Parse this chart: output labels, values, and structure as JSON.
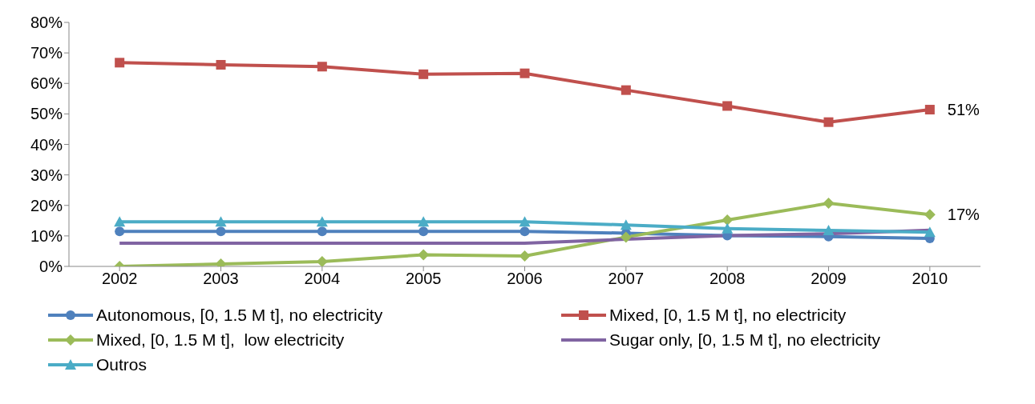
{
  "chart_data": {
    "type": "line",
    "categories": [
      "2002",
      "2003",
      "2004",
      "2005",
      "2006",
      "2007",
      "2008",
      "2009",
      "2010"
    ],
    "ylim": [
      0,
      80
    ],
    "yticks": [
      {
        "value": 0,
        "label": "0%"
      },
      {
        "value": 10,
        "label": "10%"
      },
      {
        "value": 20,
        "label": "20%"
      },
      {
        "value": 30,
        "label": "30%"
      },
      {
        "value": 40,
        "label": "40%"
      },
      {
        "value": 50,
        "label": "50%"
      },
      {
        "value": 60,
        "label": "60%"
      },
      {
        "value": 70,
        "label": "70%"
      },
      {
        "value": 80,
        "label": "80%"
      }
    ],
    "grid": false,
    "legend": "bottom",
    "series": [
      {
        "name": "Autonomous, [0, 1.5 M t], no electricity",
        "color": "#4f81bd",
        "marker": "circle",
        "values": [
          11.5,
          11.5,
          11.5,
          11.5,
          11.5,
          10.9,
          10.1,
          9.8,
          9.2
        ]
      },
      {
        "name": "Mixed, [0, 1.5 M t], no electricity",
        "color": "#c0504d",
        "marker": "square",
        "values": [
          66.8,
          66.1,
          65.5,
          63,
          63.3,
          57.8,
          52.6,
          47.3,
          51.4
        ],
        "value_labels": [
          null,
          null,
          null,
          null,
          null,
          null,
          null,
          null,
          "51%"
        ]
      },
      {
        "name": "Mixed, [0, 1.5 M t],  low electricity",
        "color": "#9bbb59",
        "marker": "diamond",
        "values": [
          0,
          0.8,
          1.6,
          3.8,
          3.4,
          9.6,
          15.2,
          20.7,
          17
        ],
        "value_labels": [
          null,
          null,
          null,
          null,
          null,
          null,
          null,
          null,
          "17%"
        ]
      },
      {
        "name": "Sugar only, [0, 1.5 M t], no electricity",
        "color": "#8064a2",
        "marker": "none",
        "values": [
          7.6,
          7.6,
          7.6,
          7.6,
          7.6,
          8.9,
          10.1,
          10.7,
          11.9
        ]
      },
      {
        "name": "Outros",
        "color": "#4bacc6",
        "marker": "triangle",
        "values": [
          14.6,
          14.6,
          14.6,
          14.6,
          14.6,
          13.6,
          12.4,
          11.8,
          11.2
        ]
      }
    ]
  }
}
